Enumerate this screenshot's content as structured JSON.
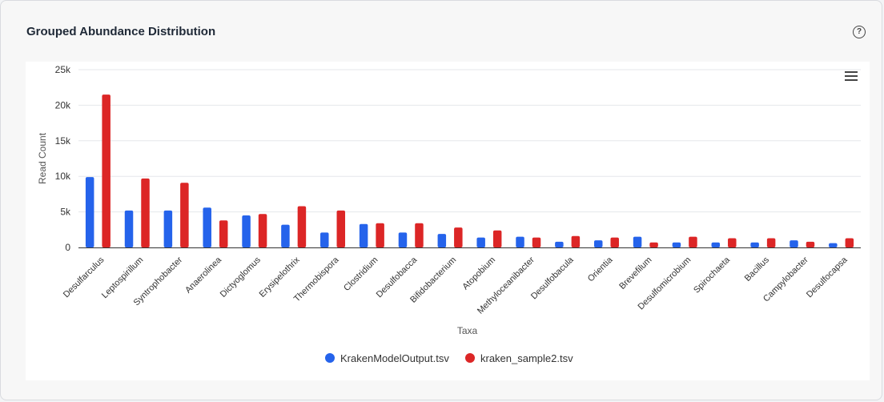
{
  "card": {
    "title": "Grouped Abundance Distribution",
    "help_glyph": "?"
  },
  "colors": {
    "series1": "#2563eb",
    "series2": "#dc2626",
    "grid": "#e5e7eb",
    "axis": "#333333",
    "text": "#333333"
  },
  "chart_data": {
    "type": "bar",
    "xlabel": "Taxa",
    "ylabel": "Read Count",
    "ylim": [
      0,
      25000
    ],
    "yticks": [
      0,
      5000,
      10000,
      15000,
      20000,
      25000
    ],
    "ytick_labels": [
      "0",
      "5k",
      "10k",
      "15k",
      "20k",
      "25k"
    ],
    "grid": true,
    "legend": "bottom-center",
    "categories": [
      "Desulfarculus",
      "Leptospirillum",
      "Syntrophobacter",
      "Anaerolinea",
      "Dictyoglomus",
      "Erysipelothrix",
      "Thermobispora",
      "Clostridium",
      "Desulfobacca",
      "Bifidobacterium",
      "Atopobium",
      "Methyloceanibacter",
      "Desulfobacula",
      "Orientia",
      "Brevefilum",
      "Desulfomicrobium",
      "Spirochaeta",
      "Bacillus",
      "Campylobacter",
      "Desulfocapsa"
    ],
    "series": [
      {
        "name": "KrakenModelOutput.tsv",
        "values": [
          9900,
          5200,
          5200,
          5600,
          4500,
          3200,
          2100,
          3300,
          2100,
          1900,
          1400,
          1500,
          800,
          1000,
          1500,
          700,
          700,
          700,
          1000,
          600
        ]
      },
      {
        "name": "kraken_sample2.tsv",
        "values": [
          21500,
          9700,
          9100,
          3800,
          4700,
          5800,
          5200,
          3400,
          3400,
          2800,
          2400,
          1400,
          1600,
          1400,
          700,
          1500,
          1300,
          1300,
          800,
          1300
        ]
      }
    ]
  }
}
